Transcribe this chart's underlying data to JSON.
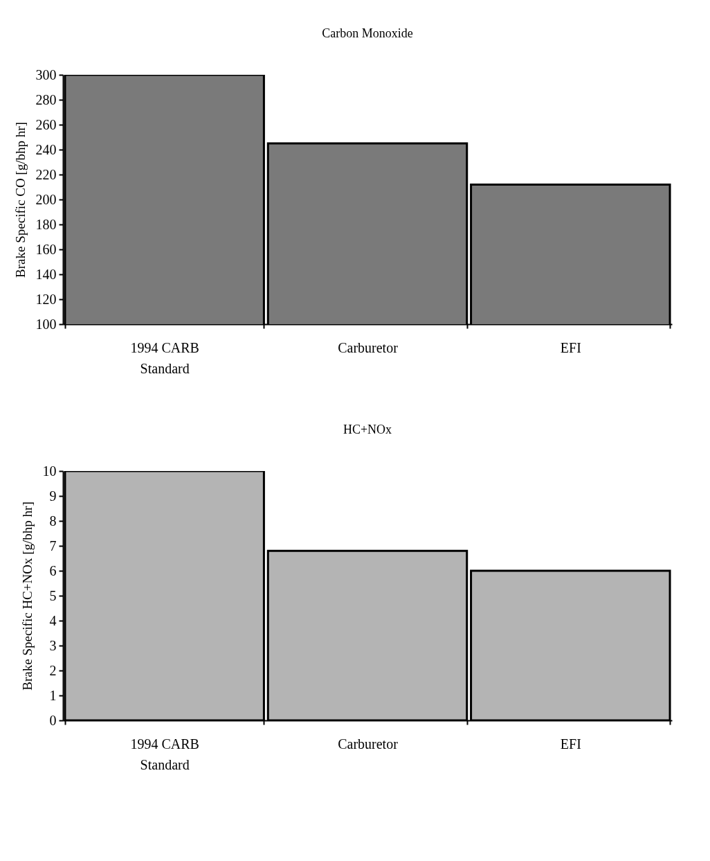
{
  "chart_data": [
    {
      "type": "bar",
      "title": "Carbon Monoxide",
      "ylabel": "Brake Specific CO [g/bhp hr]",
      "categories": [
        "1994 CARB Standard",
        "Carburetor",
        "EFI"
      ],
      "values": [
        300,
        245,
        212
      ],
      "color": "#7a7a7a",
      "ylim": [
        100,
        300
      ],
      "yticks": [
        100,
        120,
        140,
        160,
        180,
        200,
        220,
        240,
        260,
        280,
        300
      ],
      "grid": false
    },
    {
      "type": "bar",
      "title": "HC+NOx",
      "ylabel": "Brake Specific HC+NOx [g/bhp hr]",
      "categories": [
        "1994 CARB Standard",
        "Carburetor",
        "EFI"
      ],
      "values": [
        10,
        6.8,
        6
      ],
      "color": "#b4b4b4",
      "ylim": [
        0,
        10
      ],
      "yticks": [
        0,
        1,
        2,
        3,
        4,
        5,
        6,
        7,
        8,
        9,
        10
      ],
      "grid": false
    }
  ]
}
